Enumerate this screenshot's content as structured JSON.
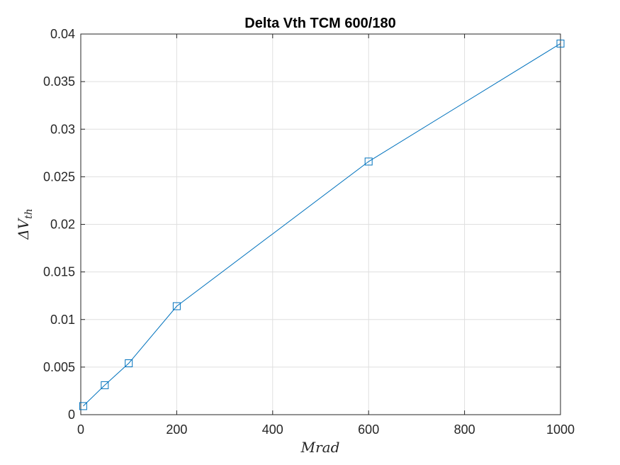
{
  "chart_data": {
    "type": "line",
    "title": "Delta Vth TCM 600/180",
    "xlabel": "Mrad",
    "ylabel": {
      "main": "ΔV",
      "subscript": "th"
    },
    "xlim": [
      0,
      1000
    ],
    "ylim": [
      0,
      0.04
    ],
    "xticks": [
      "0",
      "200",
      "400",
      "600",
      "800",
      "1000"
    ],
    "yticks": [
      "0",
      "0.005",
      "0.01",
      "0.015",
      "0.02",
      "0.025",
      "0.03",
      "0.035",
      "0.04"
    ],
    "grid": true,
    "marker": "square",
    "series": [
      {
        "color": "#0072BD",
        "x": [
          5,
          50,
          100,
          200,
          600,
          1000
        ],
        "y": [
          0.0009,
          0.0031,
          0.0054,
          0.0114,
          0.0266,
          0.039
        ]
      }
    ]
  }
}
